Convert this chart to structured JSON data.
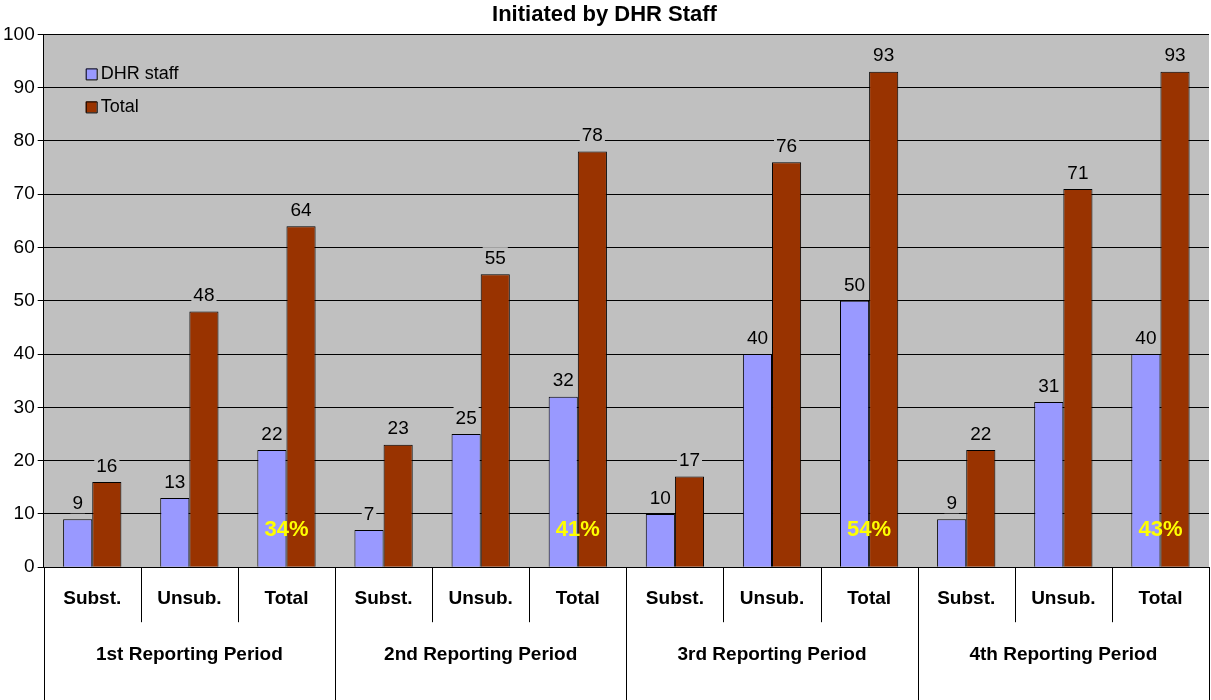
{
  "chart_data": {
    "type": "bar",
    "title": "Initiated by DHR Staff",
    "categories": [
      "Subst.",
      "Unsub.",
      "Total",
      "Subst.",
      "Unsub.",
      "Total",
      "Subst.",
      "Unsub.",
      "Total",
      "Subst.",
      "Unsub.",
      "Total"
    ],
    "series": [
      {
        "name": "DHR staff",
        "color": "#9999ff",
        "values": [
          9,
          13,
          22,
          7,
          25,
          32,
          10,
          40,
          50,
          9,
          31,
          40
        ]
      },
      {
        "name": "Total",
        "color": "#993300",
        "values": [
          16,
          48,
          64,
          23,
          55,
          78,
          17,
          76,
          93,
          22,
          71,
          93
        ]
      }
    ],
    "ylim": [
      0,
      100
    ],
    "yticks": [
      0,
      10,
      20,
      30,
      40,
      50,
      60,
      70,
      80,
      90,
      100
    ],
    "grid": "y",
    "legend": "top left",
    "data_labels": true,
    "annotations": [
      "1st Reporting Period",
      "2nd Reporting Period",
      "3rd Reporting Period",
      "4th Reporting Period",
      "34%",
      "41%",
      "54%",
      "43%"
    ]
  }
}
